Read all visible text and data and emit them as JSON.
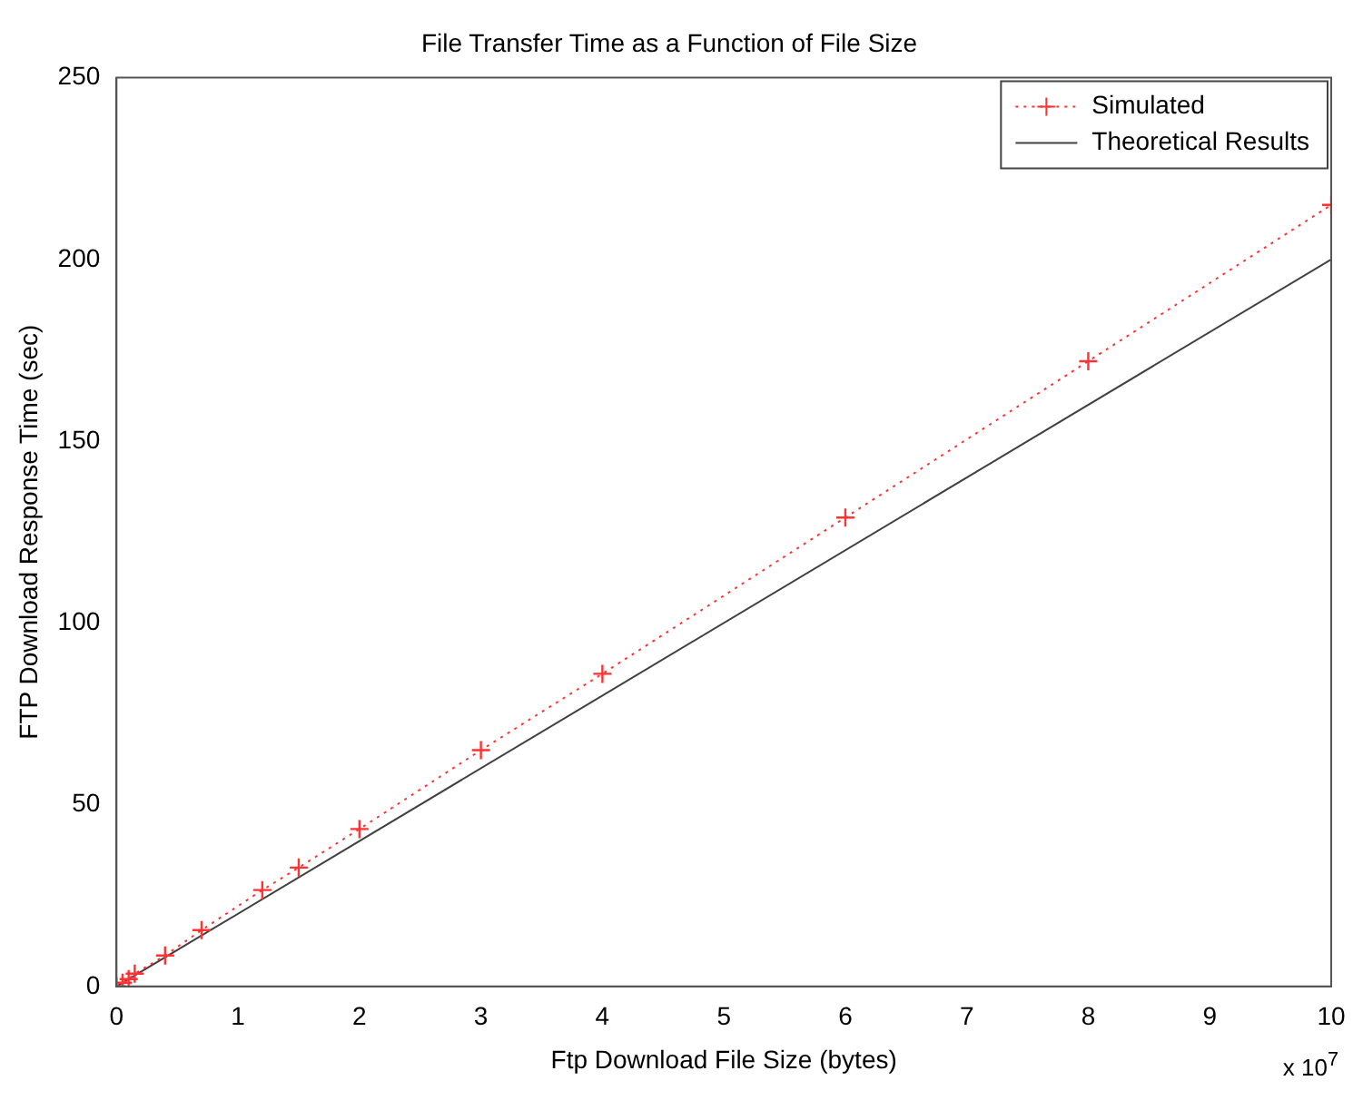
{
  "chart_data": {
    "type": "line",
    "title": "File Transfer Time as a Function of File Size",
    "xlabel": "Ftp Download File Size (bytes)",
    "ylabel": "FTP Download Response Time (sec)",
    "annotations": [
      "x 10$^{7}$"
    ],
    "xlim": [
      0,
      10
    ],
    "xticks": [
      0,
      1,
      2,
      3,
      4,
      5,
      6,
      7,
      8,
      9,
      10
    ],
    "ylim": [
      0,
      250
    ],
    "yticks": [
      0,
      50,
      100,
      150,
      200,
      250
    ],
    "grid": false,
    "legend": "top right",
    "series": [
      {
        "name": "Simulated",
        "color": "#ff3333",
        "marker": "cross",
        "line_style": "dotted",
        "x": [
          0,
          0.05,
          0.1,
          0.15,
          0.4,
          0.7,
          1.2,
          1.5,
          2,
          3,
          4,
          6,
          8,
          10
        ],
        "values": [
          0,
          1,
          2,
          3.5,
          8.5,
          15.5,
          26.5,
          32.7,
          43.3,
          65,
          86,
          129,
          172,
          215
        ]
      },
      {
        "name": "Theoretical Results",
        "color": "#404040",
        "marker": "none",
        "line_style": "solid",
        "x": [
          0,
          10
        ],
        "values": [
          0,
          200
        ]
      }
    ]
  }
}
